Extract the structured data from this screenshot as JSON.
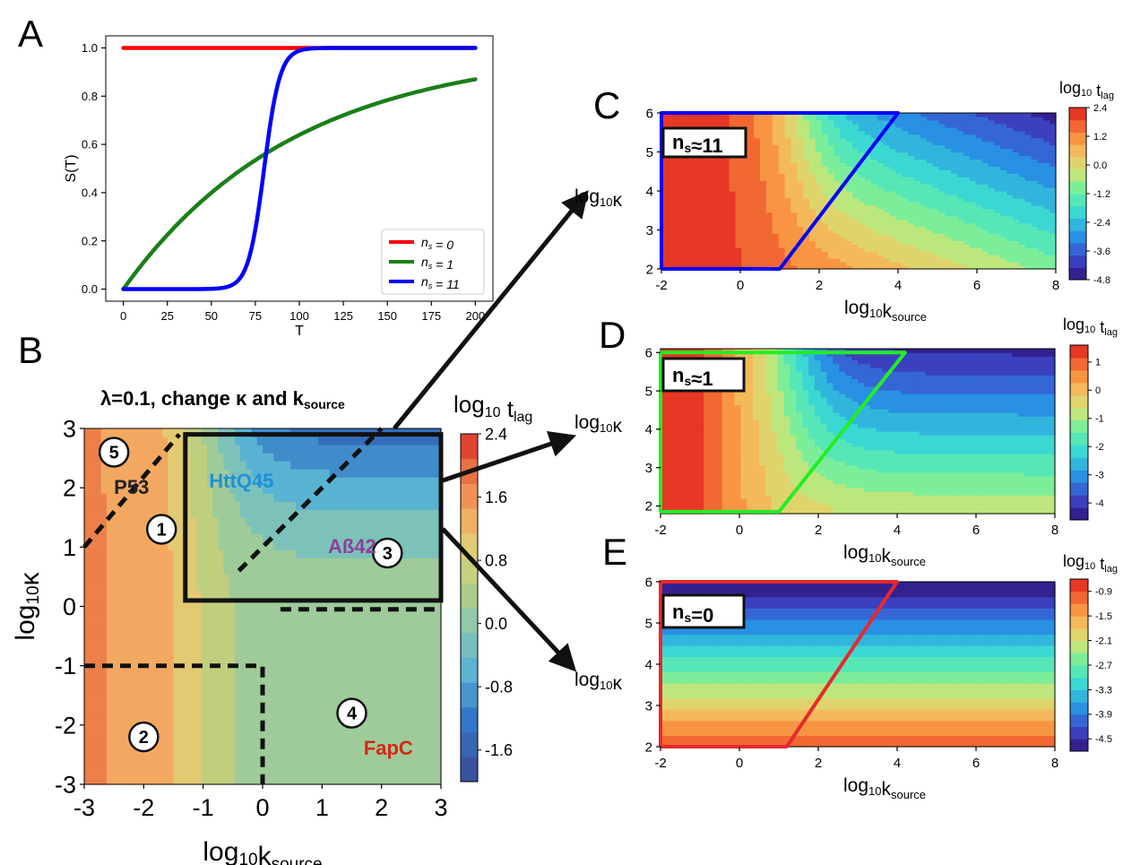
{
  "panel_labels": {
    "a": "A",
    "b": "B",
    "c": "C",
    "d": "D",
    "e": "E"
  },
  "colors": {
    "red": "#ff0000",
    "green": "#1a7f1a",
    "blue": "#0000ff",
    "lime": "#22ee22",
    "box_red": "#e8282e",
    "black": "#000000",
    "htt": "#1e90d6",
    "abeta": "#8e3f9a",
    "fapc": "#d62718",
    "p53": "#222222"
  },
  "chart_data": [
    {
      "id": "A",
      "type": "line",
      "xlabel": "T",
      "ylabel": "S(T)",
      "xlim": [
        -10,
        210
      ],
      "ylim": [
        -0.05,
        1.05
      ],
      "xticks": [
        0,
        25,
        50,
        75,
        100,
        125,
        150,
        175,
        200
      ],
      "yticks": [
        "0.0",
        "0.2",
        "0.4",
        "0.6",
        "0.8",
        "1.0"
      ],
      "ytick_values": [
        0,
        0.2,
        0.4,
        0.6,
        0.8,
        1.0
      ],
      "grid": false,
      "legend": "bottom-right",
      "series": [
        {
          "name": "n",
          "sub": "s",
          "suffix": " = 0",
          "color": "#ff0000",
          "model": "const",
          "value": 1.0
        },
        {
          "name": "n",
          "sub": "s",
          "suffix": " = 1",
          "color": "#1a7f1a",
          "model": "exp",
          "rate": 0.0102
        },
        {
          "name": "n",
          "sub": "s",
          "suffix": " = 11",
          "color": "#0000ff",
          "model": "logistic",
          "midpoint": 80,
          "scale": 4.5
        }
      ]
    },
    {
      "id": "B",
      "type": "heatmap",
      "title": "λ=0.1, change κ and k",
      "title_sub": "source",
      "xlabel": "log",
      "xlabel_sub": "10",
      "xlabel_rest": "k",
      "xlabel_rest_sub": "source",
      "ylabel": "log",
      "ylabel_sub": "10",
      "ylabel_rest": "κ",
      "xlim": [
        -3,
        3
      ],
      "ylim": [
        -3,
        3
      ],
      "xticks": [
        "-3",
        "-2",
        "-1",
        "0",
        "1",
        "2",
        "3"
      ],
      "xtick_values": [
        -3,
        -2,
        -1,
        0,
        1,
        2,
        3
      ],
      "yticks": [
        "-3",
        "-2",
        "-1",
        "0",
        "1",
        "2",
        "3"
      ],
      "ytick_values": [
        -3,
        -2,
        -1,
        0,
        1,
        2,
        3
      ],
      "colorbar": {
        "label": "log",
        "label_sub": "10",
        "label_rest": " t",
        "label_rest_sub": "lag",
        "ticks": [
          "2.4",
          "1.6",
          "0.8",
          "0.0",
          "-0.8",
          "-1.6"
        ],
        "tick_values": [
          2.4,
          1.6,
          0.8,
          0.0,
          -0.8,
          -1.6
        ],
        "range": [
          -2.0,
          2.4
        ]
      },
      "regions": [
        {
          "number": "1",
          "x": -1.7,
          "y": 1.3
        },
        {
          "number": "2",
          "x": -2.0,
          "y": -2.2
        },
        {
          "number": "3",
          "x": 2.1,
          "y": 0.9
        },
        {
          "number": "4",
          "x": 1.5,
          "y": -1.8
        },
        {
          "number": "5",
          "x": -2.5,
          "y": 2.6
        }
      ],
      "proteins": [
        {
          "name": "HttQ45",
          "x": -0.9,
          "y": 2.0,
          "color": "#1e90d6"
        },
        {
          "name": "Aß42",
          "x": 1.1,
          "y": 0.9,
          "color": "#8e3f9a"
        },
        {
          "name": "FapC",
          "x": 1.7,
          "y": -2.5,
          "color": "#d62718"
        },
        {
          "name": "P53",
          "x": -2.5,
          "y": 1.9,
          "color": "#222222"
        }
      ],
      "highlight_box": {
        "x0": -1.3,
        "x1": 3.0,
        "y0": 0.1,
        "y1": 2.9
      }
    },
    {
      "id": "C",
      "type": "heatmap",
      "annotation": "n",
      "annotation_sub": "s",
      "annotation_rest": "≈11",
      "xlabel": "log",
      "xlabel_sub": "10",
      "xlabel_rest": "k",
      "xlabel_rest_sub": "source",
      "ylabel": "log",
      "ylabel_sub": "10",
      "ylabel_rest": "κ",
      "xlim": [
        -2,
        8
      ],
      "ylim": [
        2,
        6
      ],
      "xticks": [
        "-2",
        "0",
        "2",
        "4",
        "6",
        "8"
      ],
      "xtick_values": [
        -2,
        0,
        2,
        4,
        6,
        8
      ],
      "yticks": [
        "2",
        "3",
        "4",
        "5",
        "6"
      ],
      "ytick_values": [
        2,
        3,
        4,
        5,
        6
      ],
      "colorbar": {
        "label": "log",
        "label_sub": "10",
        "label_rest": " t",
        "label_rest_sub": "lag",
        "ticks": [
          "2.4",
          "1.2",
          "0.0",
          "-1.2",
          "-2.4",
          "-3.6",
          "-4.8"
        ],
        "tick_values": [
          2.4,
          1.2,
          0.0,
          -1.2,
          -2.4,
          -3.6,
          -4.8
        ],
        "range": [
          -4.8,
          2.4
        ]
      },
      "outline_color": "#0000ff"
    },
    {
      "id": "D",
      "type": "heatmap",
      "annotation": "n",
      "annotation_sub": "s",
      "annotation_rest": "≈1",
      "xlabel": "log",
      "xlabel_sub": "10",
      "xlabel_rest": "k",
      "xlabel_rest_sub": "source",
      "ylabel": "log",
      "ylabel_sub": "10",
      "ylabel_rest": "κ",
      "xlim": [
        -2,
        8
      ],
      "ylim": [
        1.8,
        6.1
      ],
      "xticks": [
        "-2",
        "0",
        "2",
        "4",
        "6",
        "8"
      ],
      "xtick_values": [
        -2,
        0,
        2,
        4,
        6,
        8
      ],
      "yticks": [
        "2",
        "3",
        "4",
        "5",
        "6"
      ],
      "ytick_values": [
        2,
        3,
        4,
        5,
        6
      ],
      "colorbar": {
        "label": "log",
        "label_sub": "10",
        "label_rest": " t",
        "label_rest_sub": "lag",
        "ticks": [
          "1",
          "0",
          "-1",
          "-2",
          "-3",
          "-4"
        ],
        "tick_values": [
          1,
          0,
          -1,
          -2,
          -3,
          -4
        ],
        "range": [
          -4.6,
          1.6
        ]
      },
      "outline_color": "#22ee22"
    },
    {
      "id": "E",
      "type": "heatmap",
      "annotation": "n",
      "annotation_sub": "s",
      "annotation_rest": "=0",
      "xlabel": "log",
      "xlabel_sub": "10",
      "xlabel_rest": "k",
      "xlabel_rest_sub": "source",
      "ylabel": "log",
      "ylabel_sub": "10",
      "ylabel_rest": "κ",
      "xlim": [
        -2,
        8
      ],
      "ylim": [
        2,
        6
      ],
      "xticks": [
        "-2",
        "0",
        "2",
        "4",
        "6",
        "8"
      ],
      "xtick_values": [
        -2,
        0,
        2,
        4,
        6,
        8
      ],
      "yticks": [
        "2",
        "3",
        "4",
        "5",
        "6"
      ],
      "ytick_values": [
        2,
        3,
        4,
        5,
        6
      ],
      "colorbar": {
        "label": "log",
        "label_sub": "10",
        "label_rest": " t",
        "label_rest_sub": "lag",
        "ticks": [
          "-0.9",
          "-1.5",
          "-2.1",
          "-2.7",
          "-3.3",
          "-3.9",
          "-4.5"
        ],
        "tick_values": [
          -0.9,
          -1.5,
          -2.1,
          -2.7,
          -3.3,
          -3.9,
          -4.5
        ],
        "range": [
          -4.8,
          -0.6
        ]
      },
      "outline_color": "#e8282e"
    }
  ]
}
